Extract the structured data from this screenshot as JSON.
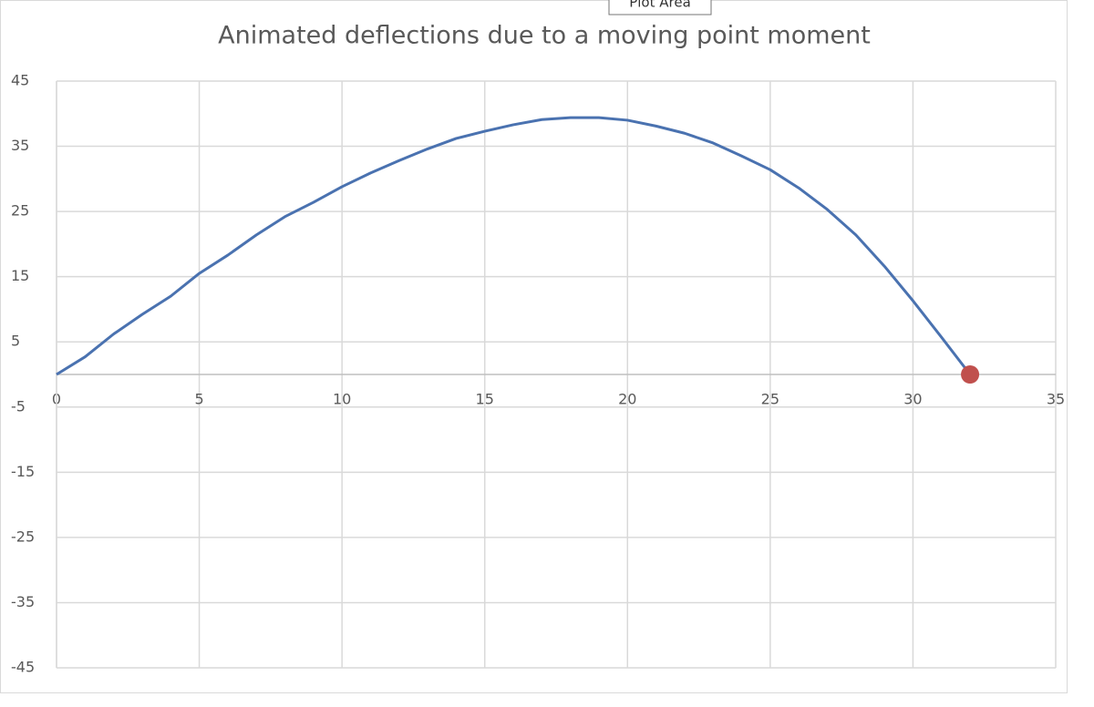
{
  "tooltip": "Plot Area",
  "chart_data": {
    "type": "scatter-line",
    "title": "Animated deflections due to a moving point moment",
    "xlim": [
      0,
      35
    ],
    "xticks": [
      0,
      5,
      10,
      15,
      20,
      25,
      30,
      35
    ],
    "ylim": [
      -45,
      45
    ],
    "yticks": [
      -45,
      -35,
      -25,
      -15,
      -5,
      5,
      15,
      25,
      35,
      45
    ],
    "grid": true,
    "series": [
      {
        "color": "#4a72b0",
        "style": "line",
        "x": [
          0,
          1,
          2,
          3,
          4,
          5,
          6,
          7,
          8,
          9,
          10,
          11,
          12,
          13,
          14,
          15,
          16,
          17,
          18,
          19,
          20,
          21,
          22,
          23,
          24,
          25,
          26,
          27,
          28,
          29,
          30,
          31,
          32
        ],
        "values": [
          0,
          2.7,
          6.2,
          9.2,
          12,
          15.5,
          18.3,
          21.4,
          24.2,
          26.4,
          28.8,
          30.9,
          32.8,
          34.6,
          36.2,
          37.3,
          38.3,
          39.1,
          39.4,
          39.4,
          39,
          38.1,
          37,
          35.5,
          33.5,
          31.4,
          28.6,
          25.3,
          21.4,
          16.6,
          11.3,
          5.7,
          0
        ]
      },
      {
        "color": "#c0504d",
        "style": "marker",
        "x": [
          32
        ],
        "values": [
          0
        ]
      }
    ]
  }
}
